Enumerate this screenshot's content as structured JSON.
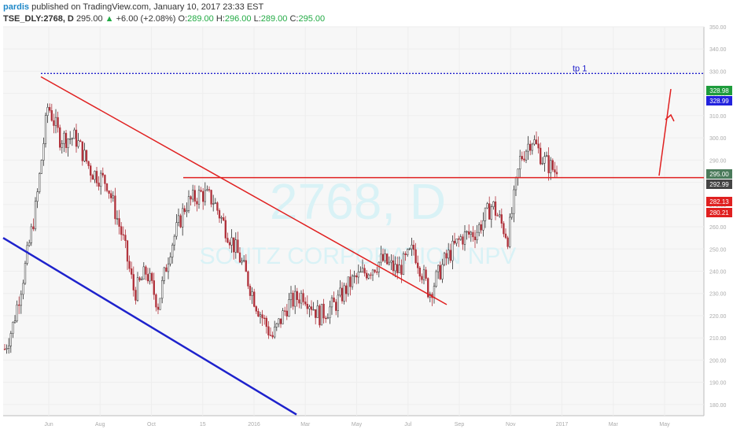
{
  "header": {
    "author": "pardis",
    "published_text": "published on TradingView.com, January 10, 2017 23:33 EST",
    "symbol": "TSE_DLY:2768, D",
    "last": "295.00",
    "change_arrow": "▲",
    "change": "+6.00 (+2.08%)",
    "o_label": "O:",
    "o_value": "289.00",
    "h_label": "H:",
    "h_value": "296.00",
    "l_label": "L:",
    "l_value": "289.00",
    "c_label": "C:",
    "c_value": "295.00"
  },
  "watermark": {
    "symbol": "2768, D",
    "name": "SOJITZ CORPORATION NPV"
  },
  "chart_data": {
    "type": "candlestick",
    "ylim": [
      175,
      350
    ],
    "y_ticks": [
      180,
      190,
      200,
      210,
      220,
      230,
      240,
      250,
      260,
      270,
      280,
      290,
      300,
      310,
      320,
      330,
      340,
      350
    ],
    "y_tick_labels": [
      "180.00",
      "190.00",
      "200.00",
      "210.00",
      "220.00",
      "230.00",
      "240.00",
      "250.00",
      "260.00",
      "270.00",
      "280.00",
      "290.00",
      "300.00",
      "310.00",
      "320.00",
      "330.00",
      "340.00",
      "350.00"
    ],
    "x_labels": [
      "Jun",
      "Aug",
      "Oct",
      "15",
      "2016",
      "Mar",
      "May",
      "Jul",
      "Sep",
      "Nov",
      "2017",
      "Mar",
      "May"
    ],
    "price_path": [
      [
        0,
        205
      ],
      [
        10,
        215
      ],
      [
        25,
        240
      ],
      [
        40,
        270
      ],
      [
        55,
        315
      ],
      [
        70,
        300
      ],
      [
        90,
        300
      ],
      [
        110,
        285
      ],
      [
        130,
        280
      ],
      [
        150,
        255
      ],
      [
        165,
        230
      ],
      [
        180,
        240
      ],
      [
        195,
        225
      ],
      [
        210,
        250
      ],
      [
        230,
        270
      ],
      [
        250,
        275
      ],
      [
        265,
        272
      ],
      [
        280,
        260
      ],
      [
        300,
        245
      ],
      [
        320,
        225
      ],
      [
        340,
        210
      ],
      [
        360,
        225
      ],
      [
        380,
        230
      ],
      [
        400,
        220
      ],
      [
        420,
        225
      ],
      [
        440,
        235
      ],
      [
        460,
        240
      ],
      [
        480,
        245
      ],
      [
        500,
        240
      ],
      [
        520,
        250
      ],
      [
        540,
        230
      ],
      [
        560,
        245
      ],
      [
        580,
        255
      ],
      [
        600,
        258
      ],
      [
        620,
        270
      ],
      [
        640,
        255
      ],
      [
        655,
        290
      ],
      [
        670,
        300
      ],
      [
        685,
        290
      ],
      [
        700,
        285
      ],
      [
        710,
        295
      ]
    ],
    "last_price": 295.0,
    "price_labels": [
      {
        "value": 328.98,
        "label": "328.98",
        "color": "#1e9c3c"
      },
      {
        "value": 328.99,
        "label": "328.99",
        "color": "#2222dd"
      },
      {
        "value": 295.0,
        "label": "295.00",
        "color": "#4a7a5a"
      },
      {
        "value": 292.99,
        "label": "292.99",
        "color": "#444444"
      },
      {
        "value": 282.13,
        "label": "282.13",
        "color": "#e02020"
      },
      {
        "value": 280.21,
        "label": "280.21",
        "color": "#e02020"
      }
    ],
    "annotations": {
      "tp_label": "tp 1",
      "tp_level": 328.99,
      "resistance_level": 282.13,
      "colors": {
        "tp": "#2222cc",
        "resistance": "#e02020",
        "downtrend": "#e02020",
        "channel": "#1e22cc",
        "arrow": "#e02020"
      }
    }
  }
}
